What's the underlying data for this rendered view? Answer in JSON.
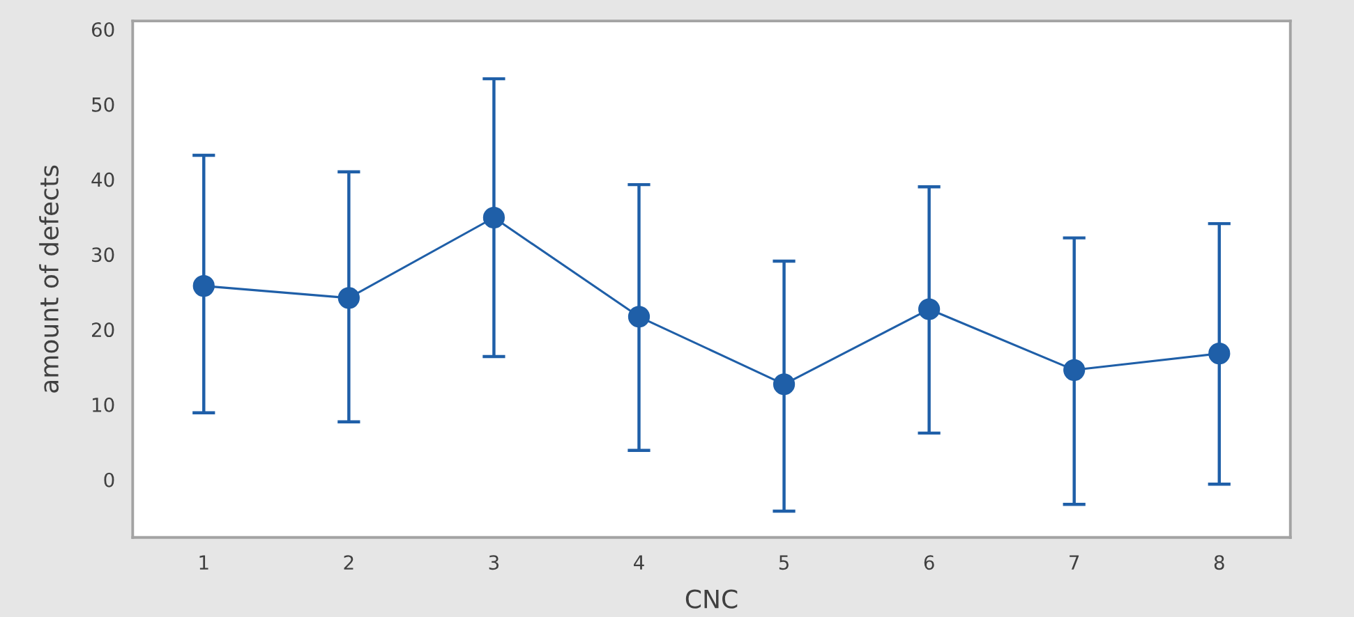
{
  "chart_data": {
    "type": "line",
    "xlabel": "CNC",
    "ylabel": "amount of defects",
    "categories": [
      "1",
      "2",
      "3",
      "4",
      "5",
      "6",
      "7",
      "8"
    ],
    "values": [
      25.8,
      24.2,
      34.9,
      21.7,
      12.7,
      22.7,
      14.6,
      16.8
    ],
    "errors": [
      [
        8.9,
        43.2
      ],
      [
        7.7,
        41.0
      ],
      [
        16.4,
        53.4
      ],
      [
        3.9,
        39.3
      ],
      [
        -4.2,
        29.1
      ],
      [
        6.2,
        39.0
      ],
      [
        -3.3,
        32.2
      ],
      [
        -0.6,
        34.1
      ]
    ],
    "color": "#1f5fa8",
    "ylim": [
      -7.7,
      61.1
    ],
    "yticks": [
      0,
      10,
      20,
      30,
      40,
      50,
      60
    ],
    "grid": false,
    "marker": "circle",
    "line_style": "solid"
  }
}
